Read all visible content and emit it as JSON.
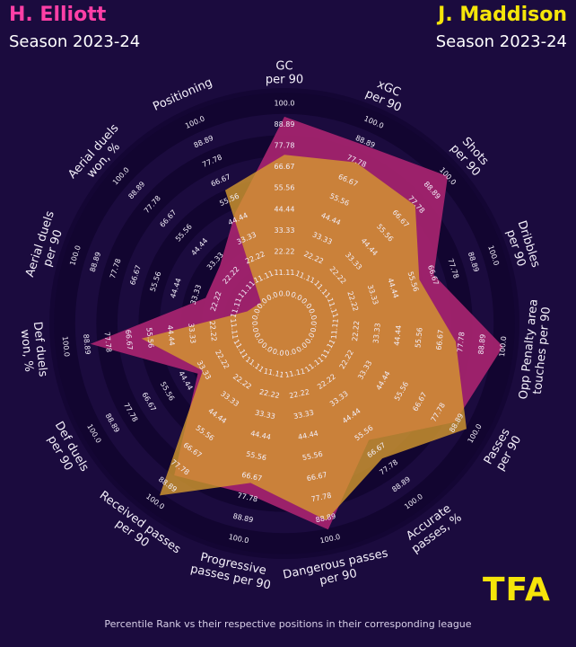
{
  "players": [
    {
      "name": "H. Elliott",
      "season": "Season 2023-24",
      "color": "#ff3fa6",
      "fill": "#a3236e"
    },
    {
      "name": "J. Maddison",
      "season": "Season 2023-24",
      "color": "#f5e50a",
      "fill": "#d69a2e"
    }
  ],
  "logo": "TFA",
  "logo_color": "#f5e50a",
  "footer": "Percentile Rank vs their respective positions in their corresponding league",
  "chart_data": {
    "type": "radar",
    "categories": [
      "GC\nper 90",
      "xGC\nper 90",
      "Shots\nper 90",
      "Dribbles\nper 90",
      "Opp Penalty area\ntouches per 90",
      "Passes\nper 90",
      "Accurate\npasses, %",
      "Dangerous passes\nper 90",
      "Progressive\npasses per 90",
      "Received passes\nper 90",
      "Def duels\nper 90",
      "Def duels\nwon, %",
      "Aerial duels\nper 90",
      "Aerial duels\nwon, %",
      "Positioning"
    ],
    "tick_labels": [
      "0.0",
      "11.11",
      "22.22",
      "33.33",
      "44.44",
      "55.56",
      "66.67",
      "77.78",
      "88.89",
      "100.0"
    ],
    "range": [
      0,
      100
    ],
    "series": [
      {
        "name": "H. Elliott",
        "values": [
          93,
          87,
          100,
          67,
          100,
          88,
          60,
          95,
          76,
          83,
          37,
          87,
          28,
          30,
          48
        ]
      },
      {
        "name": "J. Maddison",
        "values": [
          73,
          77,
          77,
          59,
          75,
          95,
          72,
          90,
          70,
          96,
          34,
          60,
          5,
          1,
          61
        ]
      }
    ]
  }
}
